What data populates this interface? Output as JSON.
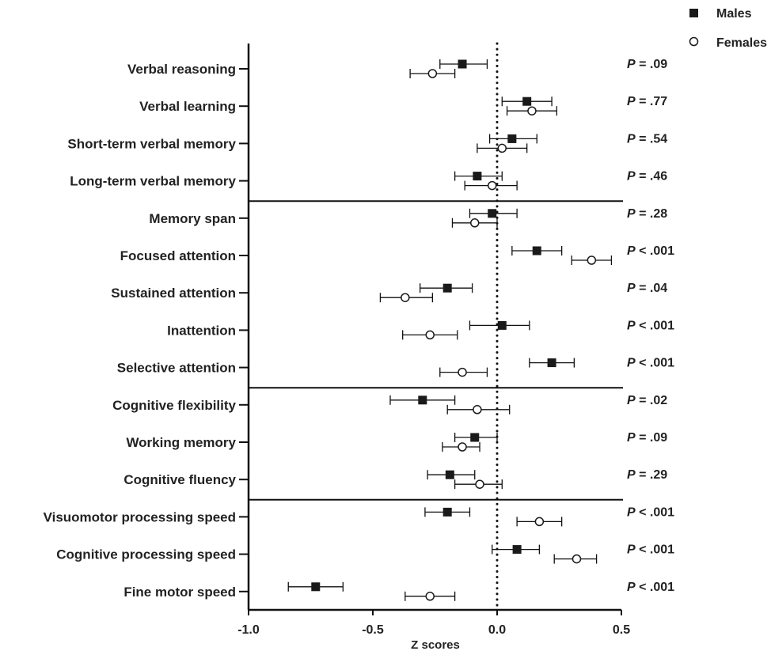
{
  "chart_data": {
    "type": "forest",
    "title": "",
    "xlabel": "Z scores",
    "ylabel": "",
    "xlim": [
      -1.0,
      0.5
    ],
    "x_ticks": [
      -1.0,
      -0.5,
      0.0,
      0.5
    ],
    "x_tick_labels": [
      "-1.0",
      "-0.5",
      "0.0",
      "0.5"
    ],
    "reference_line": 0.0,
    "legend_position": "top-right",
    "legend": [
      {
        "key": "males",
        "label": "Males",
        "marker": "filled-square"
      },
      {
        "key": "females",
        "label": "Females",
        "marker": "open-circle"
      }
    ],
    "p_prefix": "P",
    "categories": [
      {
        "label": "Verbal reasoning",
        "p_value": " = .09",
        "males": {
          "value": -0.14,
          "lo": -0.23,
          "hi": -0.04
        },
        "females": {
          "value": -0.26,
          "lo": -0.35,
          "hi": -0.17
        }
      },
      {
        "label": "Verbal learning",
        "p_value": " = .77",
        "males": {
          "value": 0.12,
          "lo": 0.02,
          "hi": 0.22
        },
        "females": {
          "value": 0.14,
          "lo": 0.04,
          "hi": 0.24
        }
      },
      {
        "label": "Short-term verbal memory",
        "p_value": " = .54",
        "males": {
          "value": 0.06,
          "lo": -0.03,
          "hi": 0.16
        },
        "females": {
          "value": 0.02,
          "lo": -0.08,
          "hi": 0.12
        }
      },
      {
        "label": "Long-term verbal memory",
        "p_value": " = .46",
        "males": {
          "value": -0.08,
          "lo": -0.17,
          "hi": 0.02
        },
        "females": {
          "value": -0.02,
          "lo": -0.13,
          "hi": 0.08
        }
      },
      {
        "label": "Memory span",
        "p_value": " = .28",
        "males": {
          "value": -0.02,
          "lo": -0.11,
          "hi": 0.08
        },
        "females": {
          "value": -0.09,
          "lo": -0.18,
          "hi": 0.0
        }
      },
      {
        "label": "Focused attention",
        "p_value": " < .001",
        "males": {
          "value": 0.16,
          "lo": 0.06,
          "hi": 0.26
        },
        "females": {
          "value": 0.38,
          "lo": 0.3,
          "hi": 0.46
        }
      },
      {
        "label": "Sustained attention",
        "p_value": " = .04",
        "males": {
          "value": -0.2,
          "lo": -0.31,
          "hi": -0.1
        },
        "females": {
          "value": -0.37,
          "lo": -0.47,
          "hi": -0.26
        }
      },
      {
        "label": "Inattention",
        "p_value": " < .001",
        "males": {
          "value": 0.02,
          "lo": -0.11,
          "hi": 0.13
        },
        "females": {
          "value": -0.27,
          "lo": -0.38,
          "hi": -0.16
        }
      },
      {
        "label": "Selective attention",
        "p_value": " < .001",
        "males": {
          "value": 0.22,
          "lo": 0.13,
          "hi": 0.31
        },
        "females": {
          "value": -0.14,
          "lo": -0.23,
          "hi": -0.04
        }
      },
      {
        "label": "Cognitive flexibility",
        "p_value": " = .02",
        "males": {
          "value": -0.3,
          "lo": -0.43,
          "hi": -0.17
        },
        "females": {
          "value": -0.08,
          "lo": -0.2,
          "hi": 0.05
        }
      },
      {
        "label": "Working memory",
        "p_value": " = .09",
        "males": {
          "value": -0.09,
          "lo": -0.17,
          "hi": 0.0
        },
        "females": {
          "value": -0.14,
          "lo": -0.22,
          "hi": -0.07
        }
      },
      {
        "label": "Cognitive fluency",
        "p_value": " = .29",
        "males": {
          "value": -0.19,
          "lo": -0.28,
          "hi": -0.09
        },
        "females": {
          "value": -0.07,
          "lo": -0.17,
          "hi": 0.02
        }
      },
      {
        "label": "Visuomotor processing speed",
        "p_value": " < .001",
        "males": {
          "value": -0.2,
          "lo": -0.29,
          "hi": -0.11
        },
        "females": {
          "value": 0.17,
          "lo": 0.08,
          "hi": 0.26
        }
      },
      {
        "label": "Cognitive processing speed",
        "p_value": " < .001",
        "males": {
          "value": 0.08,
          "lo": -0.02,
          "hi": 0.17
        },
        "females": {
          "value": 0.32,
          "lo": 0.23,
          "hi": 0.4
        }
      },
      {
        "label": "Fine motor speed",
        "p_value": " < .001",
        "males": {
          "value": -0.73,
          "lo": -0.84,
          "hi": -0.62
        },
        "females": {
          "value": -0.27,
          "lo": -0.37,
          "hi": -0.17
        }
      }
    ],
    "group_dividers_after": [
      3,
      8,
      11
    ]
  }
}
